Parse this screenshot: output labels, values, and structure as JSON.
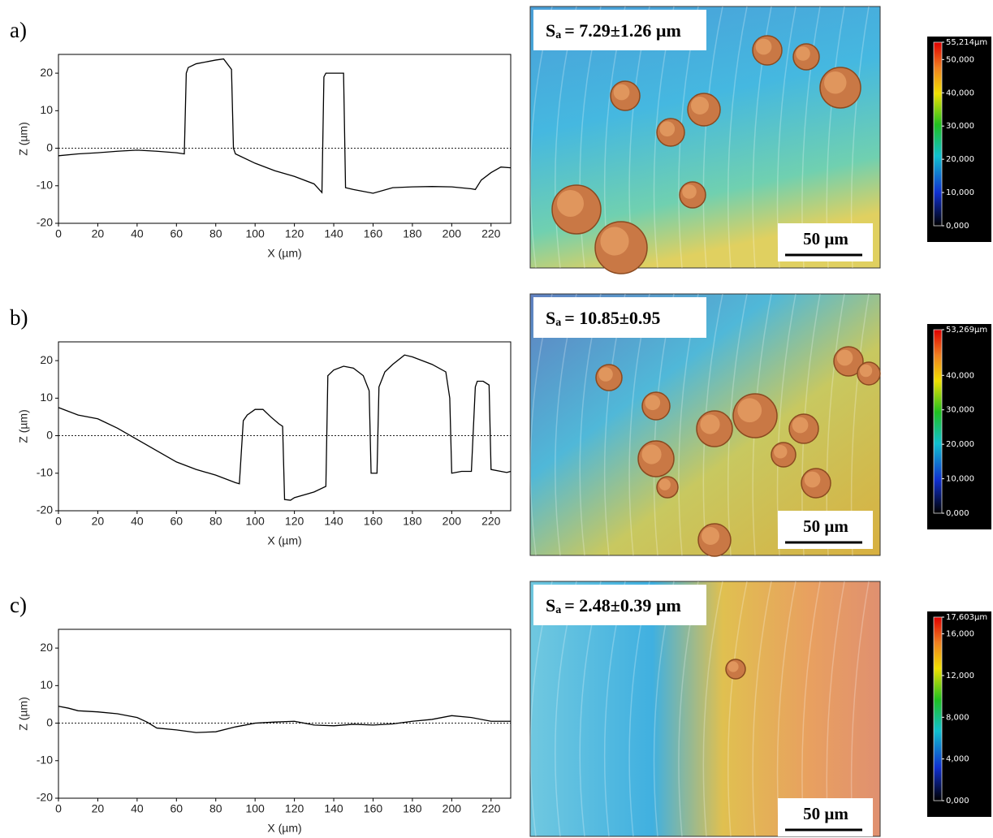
{
  "chart_data": [
    {
      "type": "line",
      "xlabel": "X (µm)",
      "ylabel": "Z (µm)",
      "xlim": [
        0,
        230
      ],
      "ylim": [
        -20,
        25
      ],
      "xticks": [
        0,
        20,
        40,
        60,
        80,
        100,
        120,
        140,
        160,
        180,
        200,
        220
      ],
      "yticks": [
        -20,
        -10,
        0,
        10,
        20
      ],
      "reference_line": 0,
      "x": [
        0,
        10,
        20,
        30,
        40,
        50,
        60,
        64,
        65,
        66,
        70,
        80,
        84,
        88,
        89,
        90,
        100,
        110,
        120,
        130,
        134,
        135,
        136,
        145,
        146,
        150,
        160,
        170,
        180,
        190,
        200,
        210,
        212,
        215,
        220,
        225,
        230
      ],
      "series": [
        {
          "color": "#000000",
          "values": [
            -2,
            -1.5,
            -1.2,
            -0.8,
            -0.5,
            -0.8,
            -1.2,
            -1.5,
            20,
            21.5,
            22.5,
            23.5,
            23.8,
            21,
            0,
            -1.5,
            -4,
            -6,
            -7.5,
            -9.5,
            -11.8,
            19,
            20,
            20,
            -10.5,
            -11,
            -12,
            -10.5,
            -10.3,
            -10.2,
            -10.3,
            -10.8,
            -11,
            -8.5,
            -6.5,
            -5,
            -5.2
          ]
        }
      ]
    },
    {
      "type": "line",
      "xlabel": "X (µm)",
      "ylabel": "Z (µm)",
      "xlim": [
        0,
        230
      ],
      "ylim": [
        -20,
        25
      ],
      "xticks": [
        0,
        20,
        40,
        60,
        80,
        100,
        120,
        140,
        160,
        180,
        200,
        220
      ],
      "yticks": [
        -20,
        -10,
        0,
        10,
        20
      ],
      "reference_line": 0,
      "x": [
        0,
        5,
        10,
        20,
        30,
        40,
        50,
        60,
        70,
        80,
        90,
        92,
        94,
        96,
        100,
        104,
        108,
        112,
        114,
        115,
        118,
        120,
        130,
        136,
        137,
        140,
        145,
        150,
        155,
        158,
        159,
        162,
        163,
        166,
        170,
        176,
        180,
        190,
        197,
        199,
        200,
        205,
        210,
        212,
        213,
        216,
        219,
        220,
        225,
        228,
        230
      ],
      "series": [
        {
          "color": "#000000",
          "values": [
            7.5,
            6.5,
            5.5,
            4.5,
            2,
            -1,
            -4,
            -7,
            -9,
            -10.5,
            -12.5,
            -12.8,
            4,
            5.5,
            7,
            7,
            5,
            3.2,
            2.5,
            -17,
            -17.2,
            -16.5,
            -15,
            -13.5,
            16,
            17.5,
            18.5,
            18,
            16,
            12,
            -10,
            -10,
            13,
            17,
            19,
            21.5,
            21,
            19,
            17,
            10,
            -10,
            -9.5,
            -9.5,
            13,
            14.5,
            14.5,
            13.5,
            -9,
            -9.5,
            -9.8,
            -9.5
          ]
        }
      ]
    },
    {
      "type": "line",
      "xlabel": "X (µm)",
      "ylabel": "Z (µm)",
      "xlim": [
        0,
        230
      ],
      "ylim": [
        -20,
        25
      ],
      "xticks": [
        0,
        20,
        40,
        60,
        80,
        100,
        120,
        140,
        160,
        180,
        200,
        220
      ],
      "yticks": [
        -20,
        -10,
        0,
        10,
        20
      ],
      "reference_line": 0,
      "x": [
        0,
        5,
        10,
        20,
        30,
        40,
        45,
        50,
        60,
        70,
        80,
        90,
        100,
        110,
        120,
        130,
        140,
        150,
        160,
        170,
        180,
        190,
        200,
        210,
        220,
        230
      ],
      "series": [
        {
          "color": "#000000",
          "values": [
            4.5,
            4,
            3.3,
            3,
            2.5,
            1.5,
            0.3,
            -1.3,
            -1.8,
            -2.5,
            -2.3,
            -1,
            0,
            0.3,
            0.5,
            -0.5,
            -0.7,
            -0.3,
            -0.5,
            -0.2,
            0.5,
            1,
            2,
            1.5,
            0.5,
            0.5
          ]
        }
      ]
    }
  ],
  "panels": [
    {
      "label": "a)",
      "sa_symbol": "S",
      "sa_subscript": "a",
      "sa_value": "= 7.29±1.26 µm",
      "scale_bar": "50 µm",
      "colorbar": {
        "lim": [
          0,
          55.214
        ],
        "ticks": [
          {
            "value": 55.214,
            "label": "55,214µm"
          },
          {
            "value": 50,
            "label": "50,000"
          },
          {
            "value": 40,
            "label": "40,000"
          },
          {
            "value": 30,
            "label": "30,000"
          },
          {
            "value": 20,
            "label": "20,000"
          },
          {
            "value": 10,
            "label": "10,000"
          },
          {
            "value": 0,
            "label": "0,000"
          }
        ]
      }
    },
    {
      "label": "b)",
      "sa_symbol": "S",
      "sa_subscript": "a",
      "sa_value": "= 10.85±0.95",
      "scale_bar": "50 µm",
      "colorbar": {
        "lim": [
          0,
          53.269
        ],
        "ticks": [
          {
            "value": 53.269,
            "label": "53,269µm"
          },
          {
            "value": 40,
            "label": "40,000"
          },
          {
            "value": 30,
            "label": "30,000"
          },
          {
            "value": 20,
            "label": "20,000"
          },
          {
            "value": 10,
            "label": "10,000"
          },
          {
            "value": 0,
            "label": "0,000"
          }
        ]
      }
    },
    {
      "label": "c)",
      "sa_symbol": "S",
      "sa_subscript": "a",
      "sa_value": "= 2.48±0.39 µm",
      "scale_bar": "50 µm",
      "colorbar": {
        "lim": [
          0,
          17.603
        ],
        "ticks": [
          {
            "value": 17.603,
            "label": "17,603µm"
          },
          {
            "value": 16,
            "label": "16,000"
          },
          {
            "value": 12,
            "label": "12,000"
          },
          {
            "value": 8,
            "label": "8,000"
          },
          {
            "value": 4,
            "label": "4,000"
          },
          {
            "value": 0,
            "label": "0,000"
          }
        ]
      }
    }
  ]
}
